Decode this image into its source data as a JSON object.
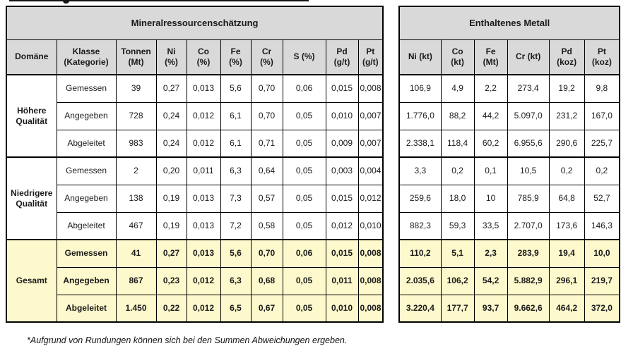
{
  "footnote": "*Aufgrund von Rundungen können sich bei den Summen Abweichungen ergeben.",
  "colors": {
    "header_bg": "#d9d9d9",
    "total_row_bg": "#fdf9cd",
    "border": "#000000"
  },
  "resource_table": {
    "title": "Mineralressourcenschätzung",
    "columns": [
      "Domäne",
      "Klasse\n(Kategorie)",
      "Tonnen\n(Mt)",
      "Ni\n(%)",
      "Co\n(%)",
      "Fe\n(%)",
      "Cr\n(%)",
      "S (%)",
      "Pd\n(g/t)",
      "Pt\n(g/t)"
    ]
  },
  "metal_table": {
    "title": "Enthaltenes Metall",
    "columns": [
      "Ni (kt)",
      "Co\n(kt)",
      "Fe\n(Mt)",
      "Cr (kt)",
      "Pd\n(koz)",
      "Pt\n(koz)"
    ]
  },
  "groups": [
    {
      "domain": "Höhere\nQualität",
      "is_total": false,
      "rows": [
        {
          "klasse": "Gemessen",
          "resource": [
            "39",
            "0,27",
            "0,013",
            "5,6",
            "0,70",
            "0,06",
            "0,015",
            "0,008"
          ],
          "metal": [
            "106,9",
            "4,9",
            "2,2",
            "273,4",
            "19,2",
            "9,8"
          ]
        },
        {
          "klasse": "Angegeben",
          "resource": [
            "728",
            "0,24",
            "0,012",
            "6,1",
            "0,70",
            "0,05",
            "0,010",
            "0,007"
          ],
          "metal": [
            "1.776,0",
            "88,2",
            "44,2",
            "5.097,0",
            "231,2",
            "167,0"
          ]
        },
        {
          "klasse": "Abgeleitet",
          "resource": [
            "983",
            "0,24",
            "0,012",
            "6,1",
            "0,71",
            "0,05",
            "0,009",
            "0,007"
          ],
          "metal": [
            "2.338,1",
            "118,4",
            "60,2",
            "6.955,6",
            "290,6",
            "225,7"
          ]
        }
      ]
    },
    {
      "domain": "Niedrigere\nQualität",
      "is_total": false,
      "rows": [
        {
          "klasse": "Gemessen",
          "resource": [
            "2",
            "0,20",
            "0,011",
            "6,3",
            "0,64",
            "0,05",
            "0,003",
            "0,004"
          ],
          "metal": [
            "3,3",
            "0,2",
            "0,1",
            "10,5",
            "0,2",
            "0,2"
          ]
        },
        {
          "klasse": "Angegeben",
          "resource": [
            "138",
            "0,19",
            "0,013",
            "7,3",
            "0,57",
            "0,05",
            "0,015",
            "0,012"
          ],
          "metal": [
            "259,6",
            "18,0",
            "10",
            "785,9",
            "64,8",
            "52,7"
          ]
        },
        {
          "klasse": "Abgeleitet",
          "resource": [
            "467",
            "0,19",
            "0,013",
            "7,2",
            "0,58",
            "0,05",
            "0,012",
            "0,010"
          ],
          "metal": [
            "882,3",
            "59,3",
            "33,5",
            "2.707,0",
            "173,6",
            "146,3"
          ]
        }
      ]
    },
    {
      "domain": "Gesamt",
      "is_total": true,
      "rows": [
        {
          "klasse": "Gemessen",
          "resource": [
            "41",
            "0,27",
            "0,013",
            "5,6",
            "0,70",
            "0,06",
            "0,015",
            "0,008"
          ],
          "metal": [
            "110,2",
            "5,1",
            "2,3",
            "283,9",
            "19,4",
            "10,0"
          ]
        },
        {
          "klasse": "Angegeben",
          "resource": [
            "867",
            "0,23",
            "0,012",
            "6,3",
            "0,68",
            "0,05",
            "0,011",
            "0,008"
          ],
          "metal": [
            "2.035,6",
            "106,2",
            "54,2",
            "5.882,9",
            "296,1",
            "219,7"
          ]
        },
        {
          "klasse": "Abgeleitet",
          "resource": [
            "1.450",
            "0,22",
            "0,012",
            "6,5",
            "0,67",
            "0,05",
            "0,010",
            "0,008"
          ],
          "metal": [
            "3.220,4",
            "177,7",
            "93,7",
            "9.662,6",
            "464,2",
            "372,0"
          ]
        }
      ]
    }
  ]
}
